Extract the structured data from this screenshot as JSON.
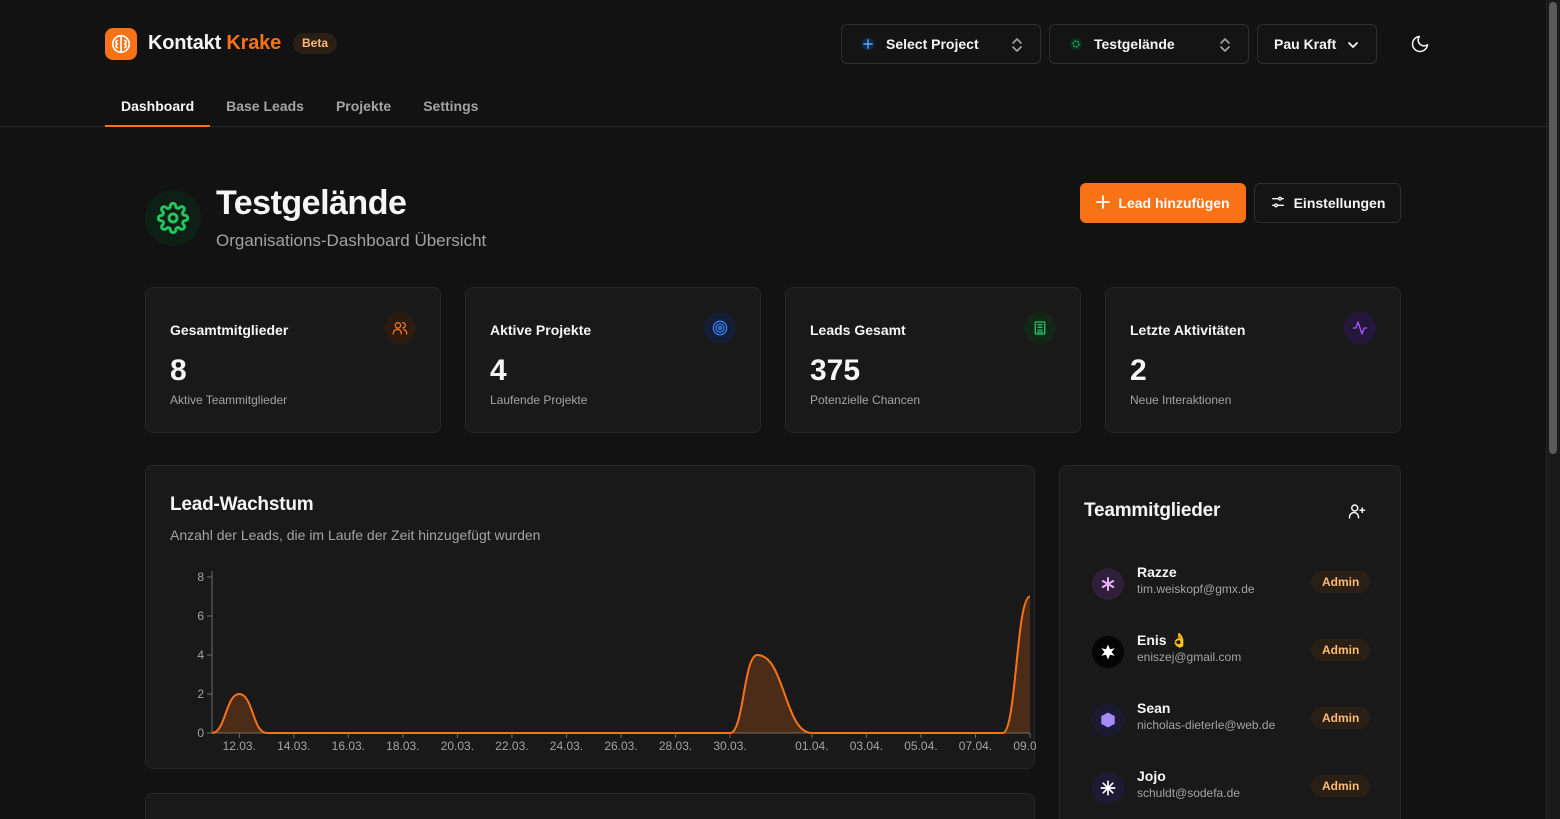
{
  "app": {
    "brand_main": "Kontakt",
    "brand_accent": "Krake",
    "badge": "Beta",
    "accent_color": "#f97316"
  },
  "header": {
    "project_select": "Select Project",
    "org_select": "Testgelände",
    "user_menu": "Pau Kraft"
  },
  "nav": {
    "tabs": [
      "Dashboard",
      "Base Leads",
      "Projekte",
      "Settings"
    ],
    "active": "Dashboard"
  },
  "page": {
    "title": "Testgelände",
    "subtitle": "Organisations-Dashboard Übersicht",
    "primary_action": "Lead hinzufügen",
    "secondary_action": "Einstellungen"
  },
  "stats": [
    {
      "label": "Gesamtmitglieder",
      "value": "8",
      "desc": "Aktive Teammitglieder",
      "icon": "users-icon",
      "color": "#f97316"
    },
    {
      "label": "Aktive Projekte",
      "value": "4",
      "desc": "Laufende Projekte",
      "icon": "target-icon",
      "color": "#3b82f6"
    },
    {
      "label": "Leads Gesamt",
      "value": "375",
      "desc": "Potenzielle Chancen",
      "icon": "building-icon",
      "color": "#22c55e"
    },
    {
      "label": "Letzte Aktivitäten",
      "value": "2",
      "desc": "Neue Interaktionen",
      "icon": "activity-icon",
      "color": "#a855f7"
    }
  ],
  "chart": {
    "title": "Lead-Wachstum",
    "subtitle": "Anzahl der Leads, die im Laufe der Zeit hinzugefügt wurden"
  },
  "chart_data": {
    "type": "area",
    "title": "Lead-Wachstum",
    "x": [
      "11.03.",
      "12.03.",
      "13.03.",
      "30.03.",
      "31.03.",
      "01.04.",
      "08.04.",
      "09.04."
    ],
    "values": [
      0,
      2,
      0,
      0,
      4,
      0,
      0,
      7
    ],
    "x_ticks": [
      "12.03.",
      "14.03.",
      "16.03.",
      "18.03.",
      "20.03.",
      "22.03.",
      "24.03.",
      "26.03.",
      "28.03.",
      "30.03.",
      "01.04.",
      "03.04.",
      "05.04.",
      "07.04.",
      "09.04."
    ],
    "y_ticks": [
      0,
      2,
      4,
      6,
      8
    ],
    "ylim": [
      0,
      8
    ],
    "color": "#f97316"
  },
  "team": {
    "title": "Teammitglieder",
    "members": [
      {
        "name": "Razze",
        "email": "tim.weiskopf@gmx.de",
        "role": "Admin",
        "avatar_bg": "#2e1f3a",
        "avatar_color": "#e9a8ff"
      },
      {
        "name": "Enis 👌",
        "email": "eniszej@gmail.com",
        "role": "Admin",
        "avatar_bg": "#050505",
        "avatar_color": "#ffffff"
      },
      {
        "name": "Sean",
        "email": "nicholas-dieterle@web.de",
        "role": "Admin",
        "avatar_bg": "#1c1a33",
        "avatar_color": "#a78bfa"
      },
      {
        "name": "Jojo",
        "email": "schuldt@sodefa.de",
        "role": "Admin",
        "avatar_bg": "#1f1a33",
        "avatar_color": "#ffffff"
      }
    ]
  }
}
